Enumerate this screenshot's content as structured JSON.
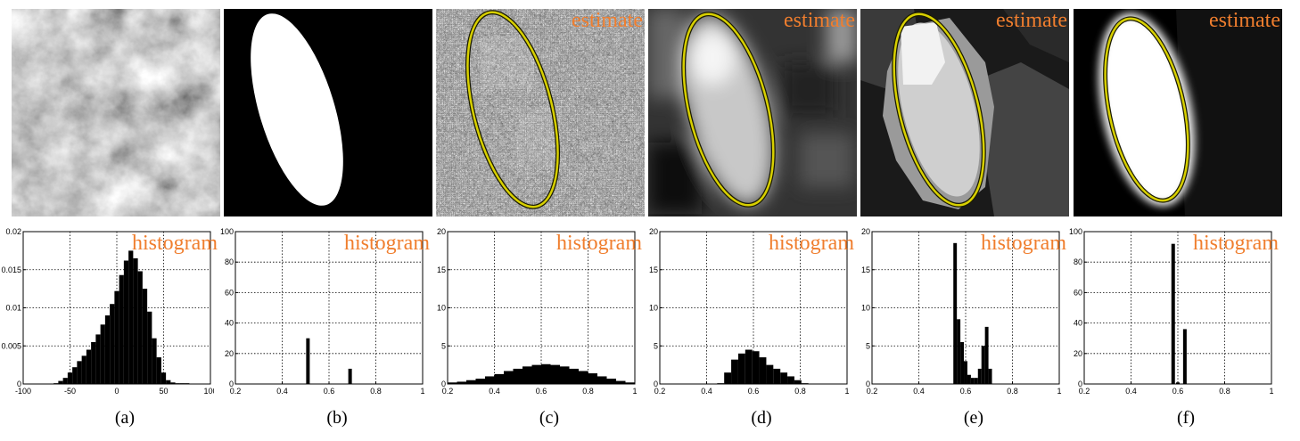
{
  "panels": {
    "a": {
      "caption": "(a)",
      "hist_label": "histogram"
    },
    "b": {
      "caption": "(b)",
      "hist_label": "histogram"
    },
    "c": {
      "caption": "(c)",
      "hist_label": "histogram",
      "est_label": "estimate"
    },
    "d": {
      "caption": "(d)",
      "hist_label": "histogram",
      "est_label": "estimate"
    },
    "e": {
      "caption": "(e)",
      "hist_label": "histogram",
      "est_label": "estimate"
    },
    "f": {
      "caption": "(f)",
      "hist_label": "histogram",
      "est_label": "estimate"
    }
  },
  "colors": {
    "label": "#f07e2e",
    "ellipse": "#d8d000"
  },
  "chart_data": [
    {
      "type": "bar",
      "xlim": [
        -100,
        100
      ],
      "ylim": [
        0,
        0.02
      ],
      "xticks": [
        "-100",
        "-50",
        "0",
        "50",
        "100"
      ],
      "yticks": [
        "0",
        "0.005",
        "0.01",
        "0.015",
        "0.02"
      ],
      "x": [
        -65,
        -60,
        -55,
        -50,
        -45,
        -40,
        -35,
        -30,
        -25,
        -20,
        -15,
        -10,
        -5,
        0,
        5,
        10,
        15,
        20,
        25,
        30,
        35,
        40,
        45,
        50,
        55,
        60,
        65,
        70,
        75
      ],
      "values": [
        0.0001,
        0.0004,
        0.0008,
        0.0015,
        0.0022,
        0.003,
        0.0037,
        0.0045,
        0.0055,
        0.0065,
        0.0078,
        0.009,
        0.0105,
        0.0122,
        0.0143,
        0.0162,
        0.0175,
        0.0165,
        0.0148,
        0.0125,
        0.0095,
        0.006,
        0.0035,
        0.0015,
        0.0005,
        0.0002,
        0.0001,
        0.0001,
        0.0001
      ],
      "grid": true
    },
    {
      "type": "bar",
      "xlim": [
        0.2,
        1
      ],
      "ylim": [
        0,
        100
      ],
      "xticks": [
        "0.2",
        "0.4",
        "0.6",
        "0.8",
        "1"
      ],
      "yticks": [
        "0",
        "20",
        "40",
        "60",
        "80",
        "100"
      ],
      "x": [
        0.51,
        0.69
      ],
      "values": [
        30,
        10
      ],
      "grid": true
    },
    {
      "type": "bar",
      "xlim": [
        0.2,
        1
      ],
      "ylim": [
        0,
        20
      ],
      "xticks": [
        "0.2",
        "0.4",
        "0.6",
        "0.8",
        "1"
      ],
      "yticks": [
        "0",
        "5",
        "10",
        "15",
        "20"
      ],
      "x": [
        0.22,
        0.26,
        0.3,
        0.34,
        0.38,
        0.42,
        0.46,
        0.5,
        0.54,
        0.58,
        0.62,
        0.66,
        0.7,
        0.74,
        0.78,
        0.82,
        0.86,
        0.9,
        0.94,
        0.98
      ],
      "values": [
        0.2,
        0.3,
        0.5,
        0.7,
        1.0,
        1.3,
        1.7,
        2.0,
        2.3,
        2.5,
        2.6,
        2.5,
        2.3,
        2.0,
        1.7,
        1.4,
        1.0,
        0.7,
        0.4,
        0.2
      ],
      "grid": true
    },
    {
      "type": "bar",
      "xlim": [
        0.2,
        1
      ],
      "ylim": [
        0,
        20
      ],
      "xticks": [
        "0.2",
        "0.4",
        "0.6",
        "0.8",
        "1"
      ],
      "yticks": [
        "0",
        "5",
        "10",
        "15",
        "20"
      ],
      "x": [
        0.46,
        0.49,
        0.52,
        0.55,
        0.58,
        0.61,
        0.64,
        0.67,
        0.7,
        0.73,
        0.76,
        0.79,
        0.82
      ],
      "values": [
        0.1,
        1.5,
        3.2,
        4.0,
        4.5,
        4.3,
        3.5,
        2.5,
        2.0,
        1.5,
        1.0,
        0.5,
        0.1
      ],
      "grid": true
    },
    {
      "type": "bar",
      "xlim": [
        0.2,
        1
      ],
      "ylim": [
        0,
        20
      ],
      "xticks": [
        "0.2",
        "0.4",
        "0.6",
        "0.8",
        "1"
      ],
      "yticks": [
        "0",
        "5",
        "10",
        "15",
        "20"
      ],
      "x": [
        0.555,
        0.57,
        0.585,
        0.6,
        0.615,
        0.63,
        0.645,
        0.66,
        0.675,
        0.69,
        0.705
      ],
      "values": [
        18.5,
        8.5,
        5.5,
        3,
        1.2,
        0.8,
        0.8,
        2,
        5,
        7.5,
        2
      ],
      "grid": true
    },
    {
      "type": "bar",
      "xlim": [
        0.2,
        1
      ],
      "ylim": [
        0,
        100
      ],
      "xticks": [
        "0.2",
        "0.4",
        "0.6",
        "0.8",
        "1"
      ],
      "yticks": [
        "0",
        "20",
        "40",
        "60",
        "80",
        "100"
      ],
      "x": [
        0.58,
        0.6,
        0.63
      ],
      "values": [
        92,
        1,
        36
      ],
      "grid": true
    }
  ]
}
